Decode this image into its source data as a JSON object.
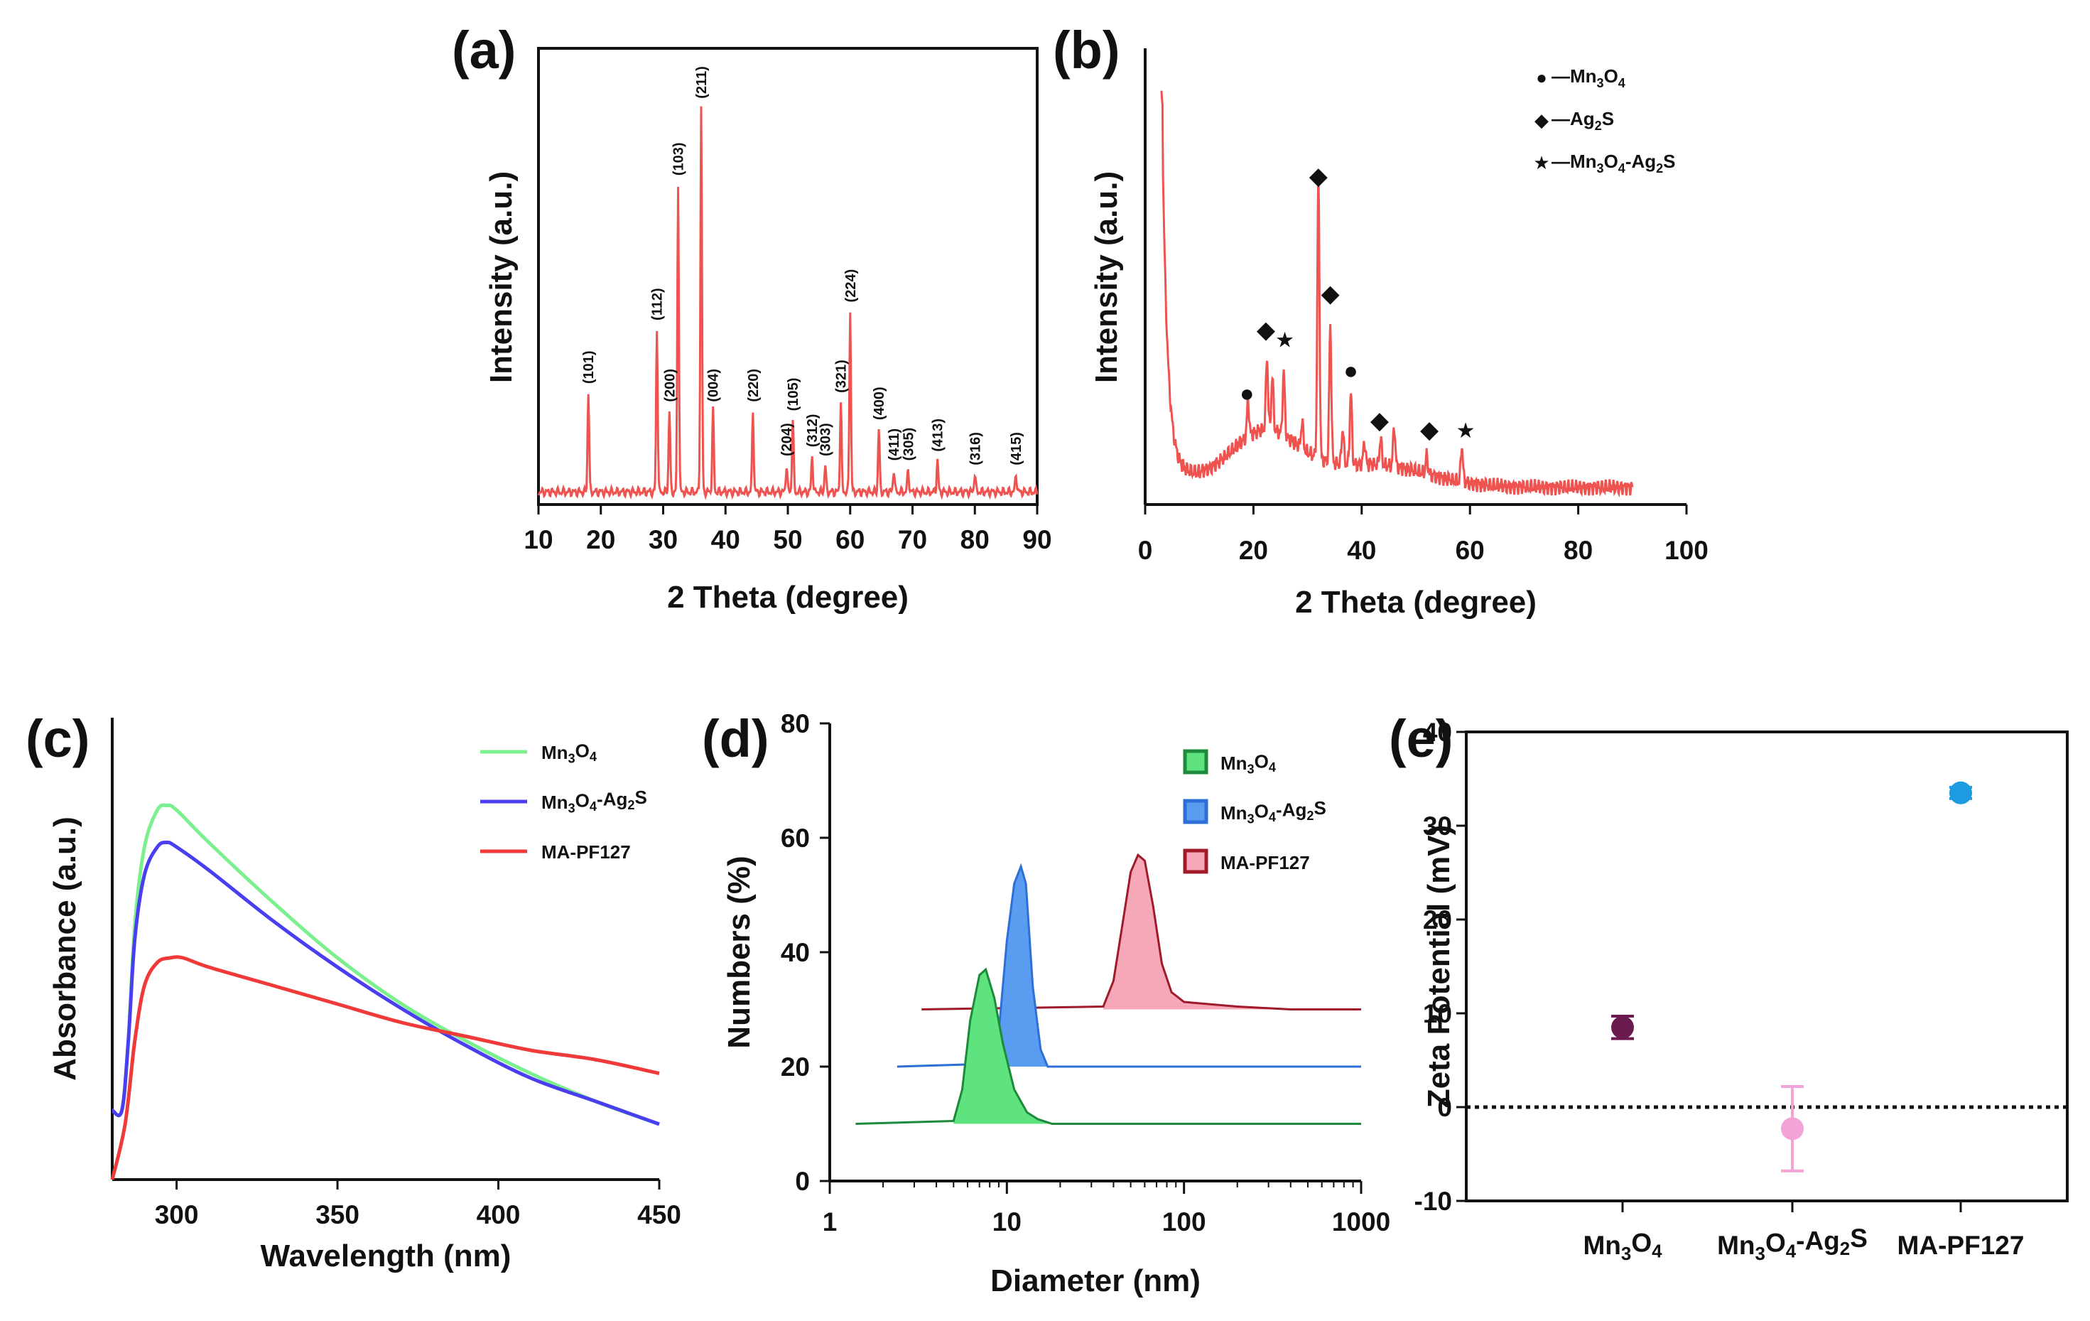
{
  "panels": {
    "a": "(a)",
    "b": "(b)",
    "c": "(c)",
    "d": "(d)",
    "e": "(e)"
  },
  "colors": {
    "xrd": "#ef5350",
    "mn3o4_line": "#7cf08e",
    "mnag_line": "#4a3ff0",
    "mapf_line": "#f03a3a",
    "dls_mn3o4": "#1e8a3c",
    "dls_mn3o4_fill": "#5ee37e",
    "dls_mnag": "#2d6fd6",
    "dls_mnag_fill": "#5a9cf0",
    "dls_mapf": "#a01a2a",
    "dls_mapf_fill": "#f7a8b8",
    "zeta_mn3o4": "#6b1b4e",
    "zeta_mnag": "#f2a3d8",
    "zeta_mapf": "#1e9be0"
  },
  "chart_data": [
    {
      "id": "a",
      "type": "line",
      "xlabel": "2 Theta (degree)",
      "ylabel": "Intensity (a.u.)",
      "xlim": [
        10,
        90
      ],
      "xticks": [
        "10",
        "20",
        "30",
        "40",
        "50",
        "60",
        "70",
        "80",
        "90"
      ],
      "ylim": [
        0,
        100
      ],
      "baseline": 2,
      "peaks": [
        {
          "x": 18.0,
          "h": 22,
          "label": "(101)"
        },
        {
          "x": 29.0,
          "h": 36,
          "label": "(112)"
        },
        {
          "x": 31.0,
          "h": 18,
          "label": "(200)"
        },
        {
          "x": 32.4,
          "h": 68,
          "label": "(103)"
        },
        {
          "x": 36.1,
          "h": 85,
          "label": "(211)"
        },
        {
          "x": 38.0,
          "h": 18,
          "label": "(004)"
        },
        {
          "x": 44.4,
          "h": 18,
          "label": "(220)"
        },
        {
          "x": 49.8,
          "h": 6,
          "label": "(204)"
        },
        {
          "x": 50.8,
          "h": 16,
          "label": "(105)"
        },
        {
          "x": 53.9,
          "h": 8,
          "label": "(312)"
        },
        {
          "x": 56.0,
          "h": 6,
          "label": "(303)"
        },
        {
          "x": 58.5,
          "h": 20,
          "label": "(321)"
        },
        {
          "x": 60.0,
          "h": 40,
          "label": "(224)"
        },
        {
          "x": 64.6,
          "h": 14,
          "label": "(400)"
        },
        {
          "x": 67.0,
          "h": 5,
          "label": "(411)"
        },
        {
          "x": 69.3,
          "h": 5,
          "label": "(305)"
        },
        {
          "x": 74.0,
          "h": 7,
          "label": "(413)"
        },
        {
          "x": 80.0,
          "h": 4,
          "label": "(316)"
        },
        {
          "x": 86.6,
          "h": 4,
          "label": "(415)"
        }
      ]
    },
    {
      "id": "b",
      "type": "line",
      "xlabel": "2 Theta (degree)",
      "ylabel": "Intensity (a.u.)",
      "xlim": [
        0,
        100
      ],
      "xticks": [
        "0",
        "20",
        "40",
        "60",
        "80",
        "100"
      ],
      "ylim": [
        0,
        100
      ],
      "range": [
        3,
        90
      ],
      "peaks": [
        {
          "x": 19.0,
          "h": 8
        },
        {
          "x": 22.5,
          "h": 16
        },
        {
          "x": 23.5,
          "h": 12
        },
        {
          "x": 25.6,
          "h": 14
        },
        {
          "x": 29.0,
          "h": 6
        },
        {
          "x": 32.0,
          "h": 62
        },
        {
          "x": 34.2,
          "h": 30
        },
        {
          "x": 36.5,
          "h": 8
        },
        {
          "x": 38.0,
          "h": 16
        },
        {
          "x": 40.5,
          "h": 5
        },
        {
          "x": 43.5,
          "h": 6
        },
        {
          "x": 46.0,
          "h": 9
        },
        {
          "x": 52.0,
          "h": 4
        },
        {
          "x": 58.5,
          "h": 8
        }
      ],
      "markers": [
        {
          "x": 18.8,
          "y": 22,
          "symbol": "●"
        },
        {
          "x": 22.3,
          "y": 36,
          "symbol": "◆"
        },
        {
          "x": 25.8,
          "y": 34,
          "symbol": "★"
        },
        {
          "x": 32.0,
          "y": 70,
          "symbol": "◆"
        },
        {
          "x": 34.2,
          "y": 44,
          "symbol": "◆"
        },
        {
          "x": 38.0,
          "y": 27,
          "symbol": "●"
        },
        {
          "x": 43.3,
          "y": 16,
          "symbol": "◆"
        },
        {
          "x": 52.5,
          "y": 14,
          "symbol": "◆"
        },
        {
          "x": 59.2,
          "y": 14,
          "symbol": "★"
        }
      ],
      "legend": [
        {
          "symbol": "●",
          "text": "—Mn",
          "sub1": "3",
          "mid": "O",
          "sub2": "4",
          "tail": ""
        },
        {
          "symbol": "◆",
          "text": "—Ag",
          "sub1": "2",
          "mid": "S",
          "sub2": "",
          "tail": ""
        },
        {
          "symbol": "★",
          "text": "—Mn",
          "sub1": "3",
          "mid": "O",
          "sub2": "4",
          "tail": "-Ag",
          "sub3": "2",
          "end": "S"
        }
      ]
    },
    {
      "id": "c",
      "type": "line",
      "xlabel": "Wavelength (nm)",
      "ylabel": "Absorbance (a.u.)",
      "xlim": [
        280,
        450
      ],
      "xticks": [
        300,
        350,
        400,
        450
      ],
      "ylim": [
        0,
        100
      ],
      "series": [
        {
          "name": "Mn3O4",
          "label": "Mn",
          "s1": "3",
          "m": "O",
          "s2": "4",
          "t": "",
          "s3": "",
          "e": "",
          "x": [
            280,
            283,
            285,
            287,
            290,
            294,
            297,
            300,
            310,
            330,
            350,
            370,
            390,
            410,
            430,
            450
          ],
          "y": [
            15,
            15,
            30,
            55,
            72,
            80,
            81,
            80,
            73,
            60,
            48,
            38,
            30,
            23,
            17,
            12
          ]
        },
        {
          "name": "Mn3O4-Ag2S",
          "label": "Mn",
          "s1": "3",
          "m": "O",
          "s2": "4",
          "t": "-Ag",
          "s3": "2",
          "e": "S",
          "x": [
            280,
            283,
            285,
            287,
            290,
            294,
            297,
            300,
            310,
            330,
            350,
            370,
            390,
            410,
            430,
            450
          ],
          "y": [
            15,
            15,
            30,
            52,
            66,
            72,
            73,
            72,
            67,
            56,
            46,
            37,
            29,
            22,
            17,
            12
          ]
        },
        {
          "name": "MA-PF127",
          "label": "MA-PF127",
          "s1": "",
          "m": "",
          "s2": "",
          "t": "",
          "s3": "",
          "e": "",
          "x": [
            280,
            284,
            287,
            290,
            294,
            298,
            302,
            310,
            330,
            350,
            370,
            390,
            410,
            430,
            450
          ],
          "y": [
            0,
            12,
            30,
            42,
            47,
            48,
            48,
            46,
            42,
            38,
            34,
            31,
            28,
            26,
            23
          ]
        }
      ]
    },
    {
      "id": "d",
      "type": "area",
      "xlabel": "Diameter (nm)",
      "ylabel": "Numbers (%)",
      "xscale": "log",
      "xlim": [
        1,
        1000
      ],
      "xticks": [
        "1",
        "10",
        "100",
        "1000"
      ],
      "ylim": [
        0,
        80
      ],
      "yticks": [
        "0",
        "20",
        "40",
        "60",
        "80"
      ],
      "series": [
        {
          "name": "Mn3O4",
          "label": "Mn",
          "s1": "3",
          "m": "O",
          "s2": "4",
          "t": "",
          "s3": "",
          "e": "",
          "base": 10,
          "xstart": 1.4,
          "xend": 1000,
          "x": [
            5.0,
            5.6,
            6.2,
            7.0,
            7.6,
            8.5,
            9.5,
            11,
            13,
            15,
            18
          ],
          "y": [
            10.5,
            16,
            28,
            36,
            37,
            32,
            24,
            16,
            12,
            10.8,
            10
          ]
        },
        {
          "name": "Mn3O4-Ag2S",
          "label": "Mn",
          "s1": "3",
          "m": "O",
          "s2": "4",
          "t": "-Ag",
          "s3": "2",
          "e": "S",
          "base": 20,
          "xstart": 2.4,
          "xend": 1000,
          "x": [
            8.0,
            9.0,
            10.0,
            11.0,
            12.0,
            12.8,
            14,
            15.5,
            17
          ],
          "y": [
            20.5,
            26,
            42,
            52,
            55,
            52,
            34,
            23,
            20
          ]
        },
        {
          "name": "MA-PF127",
          "label": "MA-PF127",
          "s1": "",
          "m": "",
          "s2": "",
          "t": "",
          "s3": "",
          "e": "",
          "base": 30,
          "xstart": 3.3,
          "xend": 1000,
          "x": [
            35,
            40,
            45,
            50,
            55,
            60,
            67,
            75,
            85,
            100,
            130,
            200,
            400
          ],
          "y": [
            30.5,
            35,
            45,
            54,
            57,
            56,
            48,
            38,
            33,
            31.3,
            31,
            30.5,
            30
          ]
        }
      ]
    },
    {
      "id": "e",
      "type": "scatter",
      "xlabel": "",
      "ylabel": "Zeta Potential (mV)",
      "ylim": [
        -10,
        40
      ],
      "yticks": [
        "-10",
        "0",
        "10",
        "20",
        "30",
        "40"
      ],
      "refline": 0,
      "categories": [
        {
          "name": "Mn3O4",
          "label": "Mn",
          "s1": "3",
          "m": "O",
          "s2": "4",
          "t": "",
          "s3": "",
          "e": "",
          "value": 8.5,
          "err": 1.2
        },
        {
          "name": "Mn3O4-Ag2S",
          "label": "Mn",
          "s1": "3",
          "m": "O",
          "s2": "4",
          "t": "-Ag",
          "s3": "2",
          "e": "S",
          "value": -2.3,
          "err": 4.5
        },
        {
          "name": "MA-PF127",
          "label": "MA-PF127",
          "s1": "",
          "m": "",
          "s2": "",
          "t": "",
          "s3": "",
          "e": "",
          "value": 33.5,
          "err": 0.6
        }
      ]
    }
  ]
}
